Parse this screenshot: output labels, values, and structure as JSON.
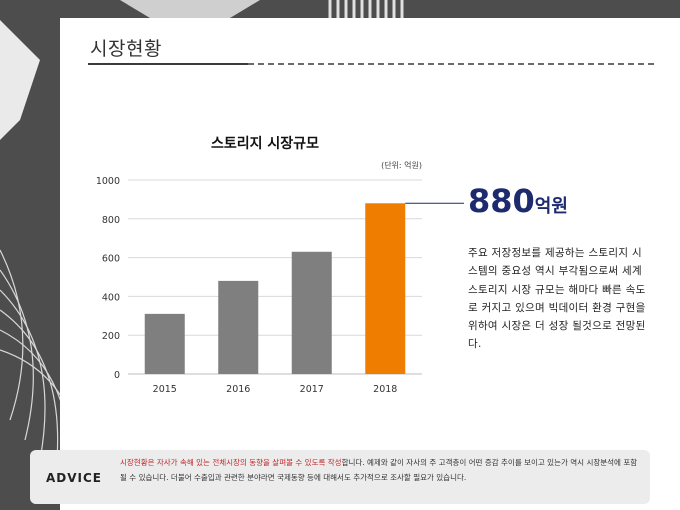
{
  "header": {
    "title": "시장현황"
  },
  "chart_data": {
    "type": "bar",
    "title": "스토리지 시장규모",
    "unit": "(단위: 억원)",
    "categories": [
      "2015",
      "2016",
      "2017",
      "2018"
    ],
    "values": [
      310,
      480,
      630,
      880
    ],
    "ylim": [
      0,
      1000
    ],
    "yticks": [
      "0",
      "200",
      "400",
      "600",
      "800",
      "1000"
    ],
    "bar_color": "#7f7f7f",
    "highlight_color": "#ef7d00",
    "highlight_index": 3,
    "grid": true
  },
  "highlight": {
    "number": "880",
    "unit": "억원",
    "color": "#1d2a6e"
  },
  "description": "주요 저장정보를 제공하는 스토리지 시스템의 중요성 역시 부각됨으로써 세계 스토리지 시장 규모는 해마다 빠른 속도로 커지고 있으며 빅데이터 환경 구현을 위하여 시장은 더 성장 될것으로 전망된다.",
  "advice": {
    "label": "ADVICE",
    "highlight_text": "시장현황은 자사가 속해 있는 전체시장의 동향을 살펴볼 수 있도록 작성",
    "text": "합니다. 예제와 같이 자사의 주 고객층이 어떤 증감 추이를 보이고 있는가 역시 시장분석에 포함될 수 있습니다. 더불어 수출입과 관련한 분야라면 국제동향 등에 대해서도 추가적으로 조사할 필요가 있습니다."
  }
}
